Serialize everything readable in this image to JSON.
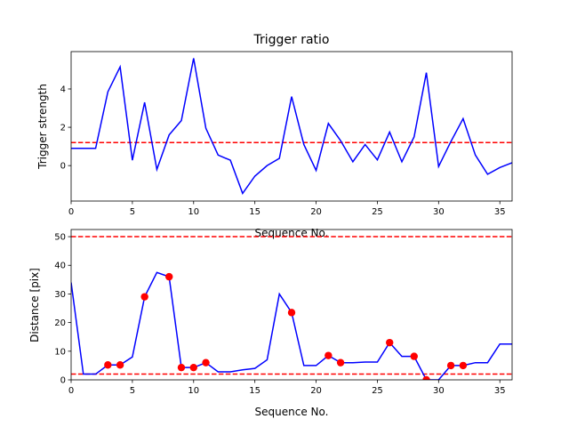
{
  "colors": {
    "series_line": "#0000ff",
    "threshold_line": "#ff0000",
    "marker": "#ff0000",
    "axes": "#000000",
    "background": "#ffffff"
  },
  "chart_data": [
    {
      "type": "line",
      "title": "Trigger ratio",
      "xlabel": "Sequence No.",
      "ylabel": "Trigger strength",
      "xlim": [
        0,
        36
      ],
      "ylim": [
        -1.85,
        5.95
      ],
      "xticks": [
        0,
        5,
        10,
        15,
        20,
        25,
        30,
        35
      ],
      "yticks": [
        0,
        2,
        4
      ],
      "grid": false,
      "series": [
        {
          "x": [
            0,
            1,
            2,
            3,
            4,
            5,
            6,
            7,
            8,
            9,
            10,
            11,
            12,
            13,
            14,
            15,
            16,
            17,
            18,
            19,
            20,
            21,
            22,
            23,
            24,
            25,
            26,
            27,
            28,
            29,
            30,
            31,
            32,
            33,
            34,
            35,
            36
          ],
          "y": [
            0.9,
            0.9,
            0.9,
            3.85,
            5.15,
            0.28,
            3.3,
            -0.2,
            1.6,
            2.35,
            5.6,
            1.95,
            0.55,
            0.28,
            -1.45,
            -0.55,
            0.0,
            0.38,
            3.6,
            1.1,
            -0.25,
            2.2,
            1.3,
            0.2,
            1.1,
            0.3,
            1.75,
            0.2,
            1.5,
            4.85,
            -0.05,
            1.25,
            2.45,
            0.55,
            -0.45,
            -0.1,
            0.15
          ]
        }
      ],
      "hlines": [
        1.2
      ]
    },
    {
      "type": "line",
      "title": "",
      "xlabel": "Sequence No.",
      "ylabel": "Distance [pix]",
      "xlim": [
        0,
        36
      ],
      "ylim": [
        0,
        52.5
      ],
      "xticks": [
        0,
        5,
        10,
        15,
        20,
        25,
        30,
        35
      ],
      "yticks": [
        0,
        10,
        20,
        30,
        40,
        50
      ],
      "grid": false,
      "series": [
        {
          "x": [
            0,
            1,
            2,
            3,
            4,
            5,
            6,
            7,
            8,
            9,
            10,
            11,
            12,
            13,
            14,
            15,
            16,
            17,
            18,
            19,
            20,
            21,
            22,
            23,
            24,
            25,
            26,
            27,
            28,
            29,
            30,
            31,
            32,
            33,
            34,
            35,
            36
          ],
          "y": [
            34,
            2,
            2,
            5.2,
            5.2,
            8,
            29,
            37.5,
            36,
            4.3,
            4.3,
            6,
            2.8,
            2.8,
            3.5,
            4,
            7,
            30,
            23.5,
            5,
            5,
            8.5,
            6,
            6,
            6.2,
            6.2,
            13,
            8.2,
            8.2,
            0,
            0,
            5,
            5,
            6,
            6,
            12.5,
            12.5
          ]
        }
      ],
      "markers": {
        "x": [
          3,
          4,
          6,
          8,
          9,
          10,
          11,
          18,
          21,
          22,
          26,
          28,
          29,
          31,
          32
        ],
        "y": [
          5.2,
          5.2,
          29,
          36,
          4.3,
          4.3,
          6,
          23.5,
          8.5,
          6,
          13,
          8.2,
          0,
          5,
          5
        ]
      },
      "hlines": [
        50,
        2
      ]
    }
  ]
}
